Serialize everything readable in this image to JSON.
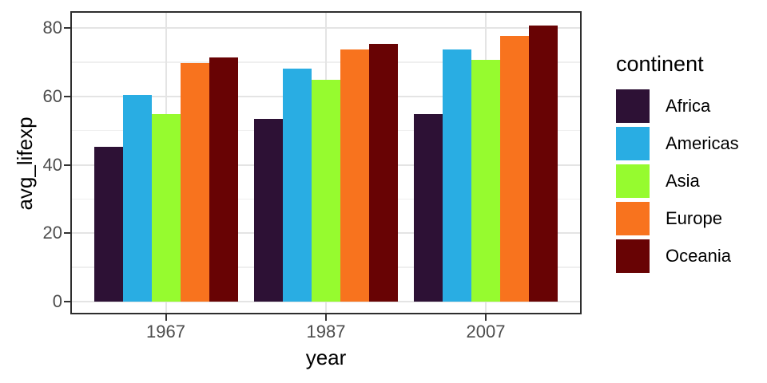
{
  "chart_data": {
    "type": "bar",
    "title": "",
    "xlabel": "year",
    "ylabel": "avg_lifexp",
    "legend_title": "continent",
    "legend_position": "right",
    "grid": true,
    "categories": [
      "1967",
      "1987",
      "2007"
    ],
    "series": [
      {
        "name": "Africa",
        "color": "#2d1135",
        "values": [
          45.3,
          53.3,
          54.8
        ]
      },
      {
        "name": "Americas",
        "color": "#29ade3",
        "values": [
          60.4,
          68.1,
          73.6
        ]
      },
      {
        "name": "Asia",
        "color": "#96fb2f",
        "values": [
          54.7,
          64.9,
          70.7
        ]
      },
      {
        "name": "Europe",
        "color": "#f8731e",
        "values": [
          69.7,
          73.6,
          77.6
        ]
      },
      {
        "name": "Oceania",
        "color": "#680304",
        "values": [
          71.3,
          75.3,
          80.7
        ]
      }
    ],
    "y_ticks": [
      0,
      20,
      40,
      60,
      80
    ],
    "y_minor_ticks": [
      10,
      30,
      50,
      70
    ],
    "ylim": [
      -4,
      85
    ]
  }
}
